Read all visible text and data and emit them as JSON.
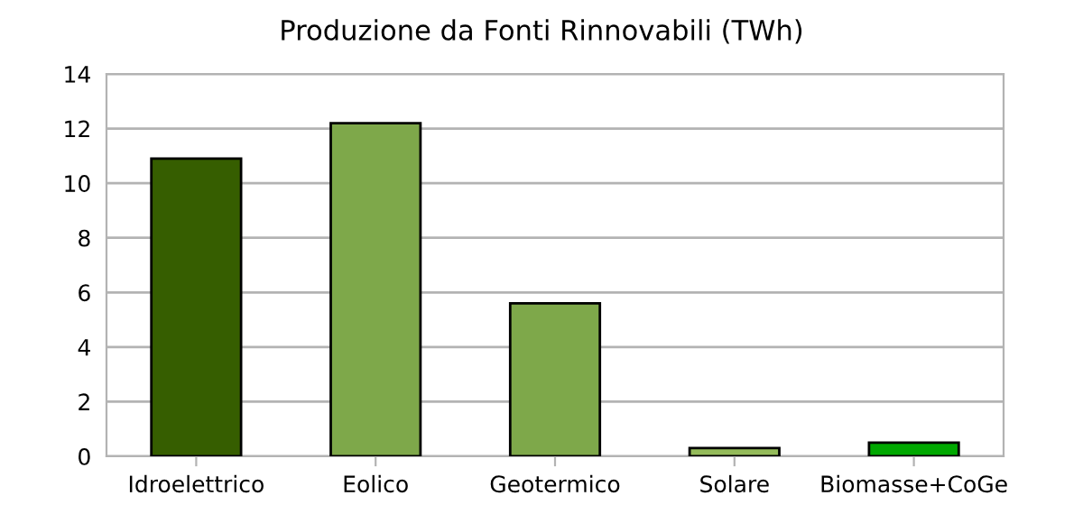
{
  "chart_data": {
    "type": "bar",
    "title": "Produzione da Fonti Rinnovabili (TWh)",
    "categories": [
      "Idroelettrico",
      "Eolico",
      "Geotermico",
      "Solare",
      "Biomasse+CoGe"
    ],
    "values": [
      10.9,
      12.2,
      5.6,
      0.3,
      0.5
    ],
    "colors": [
      "#365e00",
      "#7ea84a",
      "#7ea84a",
      "#94bb5a",
      "#00a800"
    ],
    "ylim": [
      0,
      14
    ],
    "yticks": [
      0,
      2,
      4,
      6,
      8,
      10,
      12,
      14
    ],
    "grid": "y"
  }
}
